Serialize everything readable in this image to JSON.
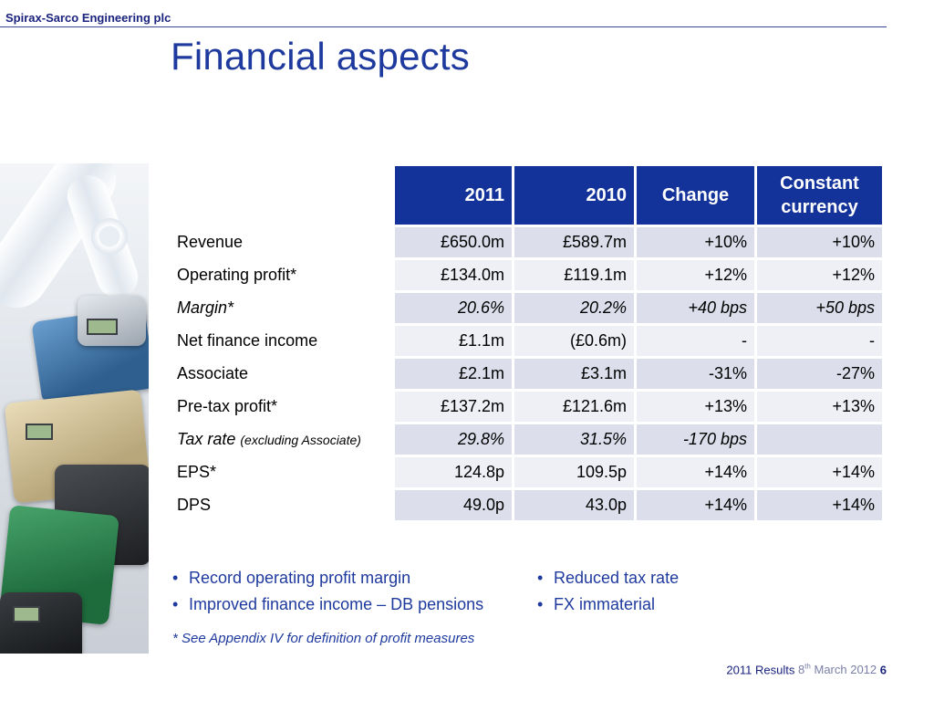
{
  "header": {
    "company": "Spirax-Sarco Engineering plc",
    "title": "Financial aspects"
  },
  "table": {
    "columns": [
      "2011",
      "2010",
      "Change",
      "Constant currency"
    ],
    "rows": [
      {
        "label": "Revenue",
        "v2011": "£650.0m",
        "v2010": "£589.7m",
        "change": "+10%",
        "cc": "+10%"
      },
      {
        "label": "Operating profit*",
        "v2011": "£134.0m",
        "v2010": "£119.1m",
        "change": "+12%",
        "cc": "+12%"
      },
      {
        "label": "Margin*",
        "v2011": "20.6%",
        "v2010": "20.2%",
        "change": "+40 bps",
        "cc": "+50 bps"
      },
      {
        "label": "Net finance income",
        "v2011": "£1.1m",
        "v2010": "(£0.6m)",
        "change": "-",
        "cc": "-"
      },
      {
        "label": "Associate",
        "v2011": "£2.1m",
        "v2010": "£3.1m",
        "change": "-31%",
        "cc": "-27%"
      },
      {
        "label": "Pre-tax profit*",
        "v2011": "£137.2m",
        "v2010": "£121.6m",
        "change": "+13%",
        "cc": "+13%"
      },
      {
        "label": "Tax rate",
        "label_note": "(excluding Associate)",
        "v2011": "29.8%",
        "v2010": "31.5%",
        "change": "-170 bps",
        "cc": ""
      },
      {
        "label": "EPS*",
        "v2011": "124.8p",
        "v2010": "109.5p",
        "change": "+14%",
        "cc": "+14%"
      },
      {
        "label": "DPS",
        "v2011": "49.0p",
        "v2010": "43.0p",
        "change": "+14%",
        "cc": "+14%"
      }
    ]
  },
  "bullets_left": [
    "Record operating profit margin",
    "Improved finance income – DB pensions"
  ],
  "bullets_right": [
    "Reduced tax rate",
    "FX immaterial"
  ],
  "bullet_glyph": "•",
  "footnote": "* See Appendix IV for definition of profit measures",
  "footer": {
    "results": "2011 Results",
    "day": "8",
    "day_suffix": "th",
    "month_year": "March 2012",
    "page": "6"
  }
}
